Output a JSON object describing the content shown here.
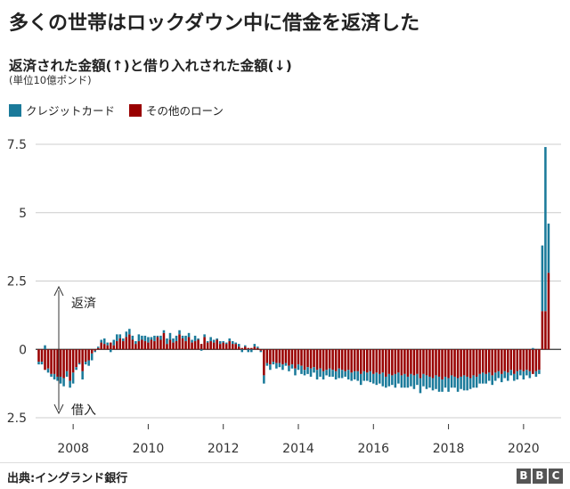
{
  "header": {
    "title": "多くの世帯はロックダウン中に借金を返済した",
    "subtitle": "返済された金額(↑)と借り入れされた金額(↓)",
    "unit": "(単位10億ポンド)"
  },
  "legend": {
    "credit_card": "クレジットカード",
    "other_loans": "その他のローン"
  },
  "colors": {
    "credit_card": "#1a7a9a",
    "other_loans": "#990000",
    "grid": "#cccccc",
    "axis": "#333333"
  },
  "footer": {
    "source": "出典:イングランド銀行",
    "logo_letters": [
      "B",
      "B",
      "C"
    ]
  },
  "chart_data": {
    "type": "bar",
    "stacked": true,
    "title": "多くの世帯はロックダウン中に借金を返済した",
    "ylabel": "(単位10億ポンド)",
    "positive_label": "返済",
    "negative_label": "借入",
    "ylim": [
      -2.5,
      7.5
    ],
    "yticks": [
      7.5,
      5,
      2.5,
      0,
      -2.5
    ],
    "ytick_labels": [
      "7.5",
      "5",
      "2.5",
      "0",
      "2.5"
    ],
    "xlim": [
      2007.0,
      2021.0
    ],
    "xticks": [
      2008,
      2010,
      2012,
      2014,
      2016,
      2018,
      2020
    ],
    "xtick_labels": [
      "2008",
      "2010",
      "2012",
      "2014",
      "2016",
      "2018",
      "2020"
    ],
    "month_start": 2007.083,
    "series": [
      {
        "name": "クレジットカード",
        "values": [
          -0.1,
          -0.1,
          0.15,
          -0.15,
          -0.1,
          -0.2,
          -0.15,
          -0.25,
          -0.3,
          -0.2,
          -0.25,
          -0.4,
          -0.1,
          -0.05,
          -0.3,
          -0.1,
          -0.2,
          -0.25,
          -0.05,
          0.05,
          0.1,
          0.2,
          0.1,
          -0.1,
          0.2,
          0.25,
          0.15,
          0.1,
          0.2,
          0.2,
          0.15,
          0.1,
          0.25,
          0.15,
          0.2,
          0.2,
          0.1,
          0.2,
          0.05,
          0.15,
          0.1,
          0.2,
          0.25,
          0.15,
          0.2,
          0.15,
          0.1,
          0.2,
          0.15,
          0.1,
          0.2,
          0.05,
          -0.05,
          0.1,
          0.05,
          0.15,
          0.1,
          0.05,
          0.1,
          0.05,
          0.05,
          0.1,
          0.1,
          0.05,
          0.1,
          -0.1,
          0.05,
          -0.1,
          -0.1,
          0.1,
          0.05,
          -0.05,
          -0.3,
          -0.1,
          -0.2,
          -0.1,
          -0.2,
          -0.15,
          -0.2,
          -0.1,
          -0.2,
          -0.15,
          -0.25,
          -0.2,
          -0.3,
          -0.2,
          -0.25,
          -0.3,
          -0.2,
          -0.35,
          -0.3,
          -0.3,
          -0.2,
          -0.3,
          -0.25,
          -0.3,
          -0.35,
          -0.3,
          -0.2,
          -0.35,
          -0.3,
          -0.3,
          -0.35,
          -0.4,
          -0.35,
          -0.3,
          -0.4,
          -0.35,
          -0.45,
          -0.35,
          -0.5,
          -0.4,
          -0.45,
          -0.35,
          -0.5,
          -0.4,
          -0.45,
          -0.5,
          -0.4,
          -0.45,
          -0.5,
          -0.4,
          -0.55,
          -0.45,
          -0.5,
          -0.4,
          -0.45,
          -0.5,
          -0.55,
          -0.45,
          -0.4,
          -0.5,
          -0.45,
          -0.4,
          -0.5,
          -0.45,
          -0.55,
          -0.5,
          -0.4,
          -0.45,
          -0.4,
          -0.35,
          -0.4,
          -0.35,
          -0.3,
          -0.35,
          -0.3,
          -0.25,
          -0.3,
          -0.25,
          -0.3,
          -0.2,
          -0.25,
          -0.3,
          -0.2,
          -0.3,
          -0.2,
          -0.25,
          0.05,
          -0.2,
          -0.15,
          2.4,
          6.0,
          1.8
        ],
        "color": "#1a7a9a"
      },
      {
        "name": "その他のローン",
        "values": [
          -0.45,
          -0.45,
          -0.75,
          -0.7,
          -0.9,
          -0.9,
          -1.0,
          -1.0,
          -1.05,
          -0.8,
          -1.15,
          -0.85,
          -0.65,
          -0.5,
          -0.8,
          -0.45,
          -0.4,
          -0.15,
          -0.05,
          0.05,
          0.25,
          0.2,
          0.15,
          0.25,
          0.15,
          0.3,
          0.4,
          0.3,
          0.45,
          0.55,
          0.35,
          0.2,
          0.3,
          0.35,
          0.3,
          0.25,
          0.35,
          0.3,
          0.45,
          0.35,
          0.6,
          0.2,
          0.35,
          0.25,
          0.3,
          0.55,
          0.4,
          0.3,
          0.45,
          0.25,
          0.3,
          0.35,
          0.2,
          0.45,
          0.25,
          0.3,
          0.25,
          0.35,
          0.2,
          0.25,
          0.2,
          0.3,
          0.2,
          0.2,
          0.1,
          0.05,
          0.1,
          0.05,
          0.05,
          0.1,
          0.05,
          -0.05,
          -0.95,
          -0.5,
          -0.55,
          -0.45,
          -0.5,
          -0.5,
          -0.55,
          -0.5,
          -0.6,
          -0.55,
          -0.7,
          -0.55,
          -0.6,
          -0.75,
          -0.65,
          -0.7,
          -0.65,
          -0.75,
          -0.7,
          -0.8,
          -0.75,
          -0.7,
          -0.75,
          -0.8,
          -0.7,
          -0.75,
          -0.8,
          -0.75,
          -0.85,
          -0.8,
          -0.8,
          -0.9,
          -0.8,
          -0.85,
          -0.8,
          -0.9,
          -0.85,
          -0.9,
          -0.85,
          -1.0,
          -0.9,
          -0.95,
          -0.9,
          -0.85,
          -0.95,
          -0.9,
          -1.0,
          -0.9,
          -0.95,
          -0.9,
          -1.05,
          -0.9,
          -0.95,
          -1.0,
          -1.05,
          -0.95,
          -1.0,
          -1.1,
          -1.0,
          -1.05,
          -0.95,
          -1.0,
          -1.05,
          -1.0,
          -0.95,
          -1.0,
          -1.05,
          -0.95,
          -1.0,
          -0.9,
          -0.85,
          -0.9,
          -0.85,
          -0.95,
          -0.85,
          -0.8,
          -0.9,
          -0.8,
          -0.85,
          -0.75,
          -0.9,
          -0.8,
          -0.75,
          -0.8,
          -0.75,
          -0.8,
          -0.9,
          -0.8,
          -0.75,
          1.4,
          1.4,
          2.8
        ],
        "color": "#990000"
      }
    ]
  }
}
